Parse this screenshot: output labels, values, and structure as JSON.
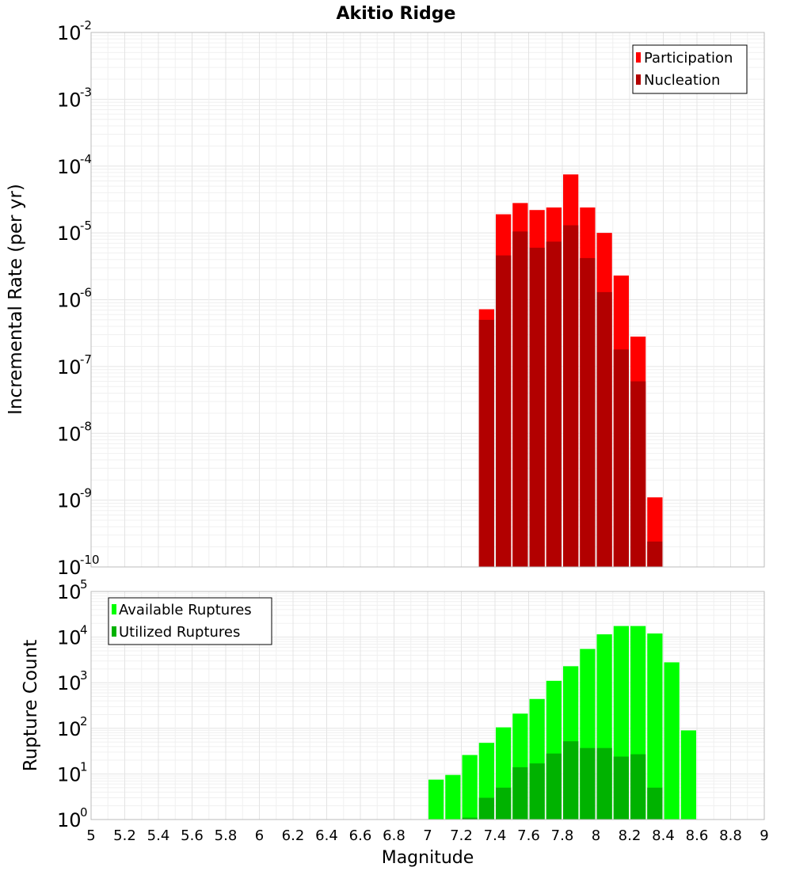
{
  "chart_data": [
    {
      "type": "bar",
      "title": "Akitio Ridge",
      "xlabel": "",
      "ylabel": "Incremental Rate (per yr)",
      "yscale": "log",
      "ylim_exp": [
        -10,
        -2
      ],
      "xlim": [
        5,
        9
      ],
      "ytick_base": "10",
      "ytick_exps": [
        "-10",
        "-9",
        "-8",
        "-7",
        "-6",
        "-5",
        "-4",
        "-3",
        "-2"
      ],
      "legend_position": "top-right",
      "colors": {
        "participation": "#ff0000",
        "nucleation": "#b20000"
      },
      "series": [
        {
          "name": "Participation",
          "bins": [
            7.35,
            7.45,
            7.55,
            7.65,
            7.75,
            7.85,
            7.95,
            8.05,
            8.15,
            8.25,
            8.35
          ],
          "values": [
            7.2e-07,
            1.9e-05,
            2.8e-05,
            2.2e-05,
            2.4e-05,
            7.5e-05,
            2.4e-05,
            1e-05,
            2.3e-06,
            2.8e-07,
            1.1e-09
          ]
        },
        {
          "name": "Nucleation",
          "bins": [
            7.35,
            7.45,
            7.55,
            7.65,
            7.75,
            7.85,
            7.95,
            8.05,
            8.15,
            8.25,
            8.35
          ],
          "values": [
            5e-07,
            4.6e-06,
            1.05e-05,
            6e-06,
            7.4e-06,
            1.3e-05,
            4.2e-06,
            1.3e-06,
            1.8e-07,
            6e-08,
            2.4e-10
          ]
        }
      ]
    },
    {
      "type": "bar",
      "title": "",
      "xlabel": "Magnitude",
      "ylabel": "Rupture Count",
      "yscale": "log",
      "ylim_exp": [
        0,
        5
      ],
      "xlim": [
        5,
        9
      ],
      "ytick_base": "10",
      "ytick_exps": [
        "0",
        "1",
        "2",
        "3",
        "4",
        "5"
      ],
      "xticks": [
        "5",
        "5.2",
        "5.4",
        "5.6",
        "5.8",
        "6",
        "6.2",
        "6.4",
        "6.6",
        "6.8",
        "7",
        "7.2",
        "7.4",
        "7.6",
        "7.8",
        "8",
        "8.2",
        "8.4",
        "8.6",
        "8.8",
        "9"
      ],
      "legend_position": "top-left",
      "colors": {
        "available": "#00ff00",
        "utilized": "#00b200"
      },
      "series": [
        {
          "name": "Available Ruptures",
          "bins": [
            7.05,
            7.15,
            7.25,
            7.35,
            7.45,
            7.55,
            7.65,
            7.75,
            7.85,
            7.95,
            8.05,
            8.15,
            8.25,
            8.35,
            8.45,
            8.55
          ],
          "values": [
            7.5,
            9.5,
            26,
            48,
            105,
            210,
            440,
            1100,
            2300,
            5500,
            11500,
            17500,
            17500,
            12000,
            2800,
            90
          ]
        },
        {
          "name": "Utilized Ruptures",
          "bins": [
            7.25,
            7.35,
            7.45,
            7.55,
            7.65,
            7.75,
            7.85,
            7.95,
            8.05,
            8.15,
            8.25,
            8.35
          ],
          "values": [
            1.1,
            3,
            5,
            14,
            17,
            28,
            52,
            37,
            37,
            24,
            27,
            5
          ]
        }
      ]
    }
  ]
}
